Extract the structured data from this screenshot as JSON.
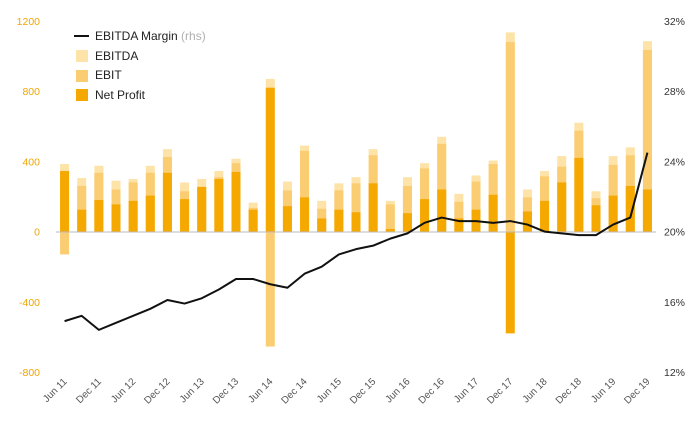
{
  "chart_data": {
    "type": "bar",
    "x": [
      "Jun 11",
      "Sep 11",
      "Dec 11",
      "Mar 12",
      "Jun 12",
      "Sep 12",
      "Dec 12",
      "Mar 13",
      "Jun 13",
      "Sep 13",
      "Dec 13",
      "Mar 14",
      "Jun 14",
      "Sep 14",
      "Dec 14",
      "Mar 15",
      "Jun 15",
      "Sep 15",
      "Dec 15",
      "Mar 16",
      "Jun 16",
      "Sep 16",
      "Dec 16",
      "Mar 17",
      "Jun 17",
      "Sep 17",
      "Dec 17",
      "Mar 18",
      "Jun 18",
      "Sep 18",
      "Dec 18",
      "Mar 19",
      "Jun 19",
      "Sep 19",
      "Dec 19"
    ],
    "tick_labels": [
      "Jun 11",
      "Dec 11",
      "Jun 12",
      "Dec 12",
      "Jun 13",
      "Dec 13",
      "Jun 14",
      "Dec 14",
      "Jun 15",
      "Dec 15",
      "Jun 16",
      "Dec 16",
      "Jun 17",
      "Dec 17",
      "Jun 18",
      "Dec 18",
      "Jun 19",
      "Dec 19"
    ],
    "series": [
      {
        "name": "EBITDA",
        "type": "bar",
        "color": "#fde3a7",
        "values": [
          385,
          305,
          375,
          290,
          300,
          375,
          470,
          280,
          300,
          345,
          415,
          165,
          870,
          285,
          490,
          175,
          275,
          310,
          470,
          175,
          310,
          390,
          540,
          215,
          320,
          405,
          1135,
          240,
          345,
          430,
          620,
          230,
          430,
          480,
          1085
        ]
      },
      {
        "name": "EBIT",
        "type": "bar",
        "color": "#fbcd72",
        "values": [
          -130,
          260,
          335,
          240,
          280,
          335,
          425,
          230,
          250,
          310,
          390,
          135,
          -655,
          235,
          460,
          130,
          235,
          275,
          435,
          155,
          260,
          360,
          500,
          170,
          285,
          385,
          1080,
          195,
          315,
          370,
          575,
          190,
          380,
          435,
          1035
        ]
      },
      {
        "name": "Net Profit",
        "type": "bar",
        "color": "#f5a800",
        "values": [
          345,
          125,
          180,
          155,
          175,
          205,
          335,
          185,
          255,
          300,
          340,
          125,
          820,
          145,
          195,
          75,
          125,
          110,
          275,
          15,
          105,
          185,
          240,
          75,
          125,
          210,
          -580,
          115,
          175,
          280,
          420,
          150,
          205,
          260,
          240
        ]
      },
      {
        "name": "EBITDA Margin",
        "name_suffix": "(rhs)",
        "type": "line",
        "color": "#111111",
        "axis": "right",
        "values": [
          14.9,
          15.2,
          14.4,
          14.8,
          15.2,
          15.6,
          16.1,
          15.9,
          16.2,
          16.7,
          17.3,
          17.3,
          17.0,
          16.8,
          17.6,
          18.0,
          18.7,
          19.0,
          19.2,
          19.6,
          19.9,
          20.5,
          20.8,
          20.6,
          20.6,
          20.5,
          20.6,
          20.4,
          20.0,
          19.9,
          19.8,
          19.8,
          20.4,
          20.8,
          24.5
        ]
      }
    ],
    "y_left": {
      "ticks": [
        -800,
        -400,
        0,
        400,
        800,
        1200
      ],
      "labels": [
        "-800",
        "-400",
        "0",
        "400",
        "800",
        "1200"
      ],
      "range": [
        -800,
        1200
      ]
    },
    "y_right": {
      "ticks": [
        12,
        16,
        20,
        24,
        28,
        32
      ],
      "labels": [
        "12%",
        "16%",
        "20%",
        "24%",
        "28%",
        "32%"
      ],
      "range": [
        12,
        32
      ]
    },
    "bar_mode": "overlay",
    "grid": false,
    "legend_position": "top-left",
    "colors": {
      "left_axis_text": "#f0a500",
      "right_axis_text": "#333333",
      "axis_line": "#bbbbbb"
    }
  }
}
